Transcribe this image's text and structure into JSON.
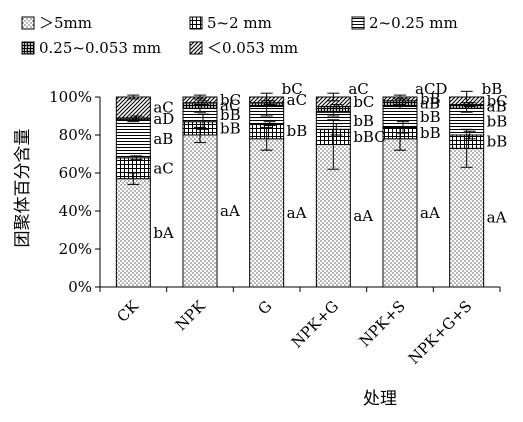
{
  "chart_data": {
    "type": "bar",
    "stacked": true,
    "ylabel": "团聚体百分含量",
    "xlabel": "处理",
    "ylim": [
      0,
      100
    ],
    "y_ticks": [
      "0%",
      "20%",
      "40%",
      "60%",
      "80%",
      "100%"
    ],
    "legend_position": "top",
    "categories": [
      "CK",
      "NPK",
      "G",
      "NPK+G",
      "NPK+S",
      "NPK+G+S"
    ],
    "series": [
      {
        "name": "＞5mm",
        "values": [
          57,
          80,
          78,
          75,
          78,
          73
        ],
        "error": [
          3,
          4,
          6,
          13,
          6,
          10
        ]
      },
      {
        "name": "5~2 mm",
        "values": [
          11,
          7,
          8,
          8,
          6,
          7
        ],
        "error": [
          1,
          4,
          1,
          3,
          3,
          2
        ]
      },
      {
        "name": "2~0.25 mm",
        "values": [
          20,
          7,
          9,
          9,
          11,
          14
        ],
        "error": [
          1,
          2,
          5,
          2,
          1,
          2
        ]
      },
      {
        "name": "0.25~0.053 mm",
        "values": [
          1,
          3,
          2,
          3,
          3,
          2
        ],
        "error": [
          1,
          1,
          1,
          1,
          1,
          1
        ]
      },
      {
        "name": "＜0.053 mm",
        "values": [
          11,
          3,
          3,
          5,
          2,
          4
        ],
        "error": [
          1,
          1,
          2,
          2,
          1,
          3
        ]
      }
    ],
    "annotations": [
      [
        "bA",
        "aC",
        "aB",
        "aD",
        "aC"
      ],
      [
        "aA",
        "bB",
        "bB",
        "aC",
        "bC"
      ],
      [
        "aA",
        "bB",
        "",
        "",
        "aC"
      ],
      [
        "aA",
        "bBC",
        "bB",
        "",
        "bC"
      ],
      [
        "aA",
        "bB",
        "bB",
        "aB",
        "bB"
      ],
      [
        "aA",
        "bB",
        "bB",
        "aB",
        "bC"
      ]
    ],
    "annotation_extra": [
      {
        "category": 2,
        "text": "bC"
      },
      {
        "category": 3,
        "text": "aC"
      },
      {
        "category": 4,
        "text": "aCD"
      },
      {
        "category": 5,
        "text": "bB"
      }
    ]
  }
}
